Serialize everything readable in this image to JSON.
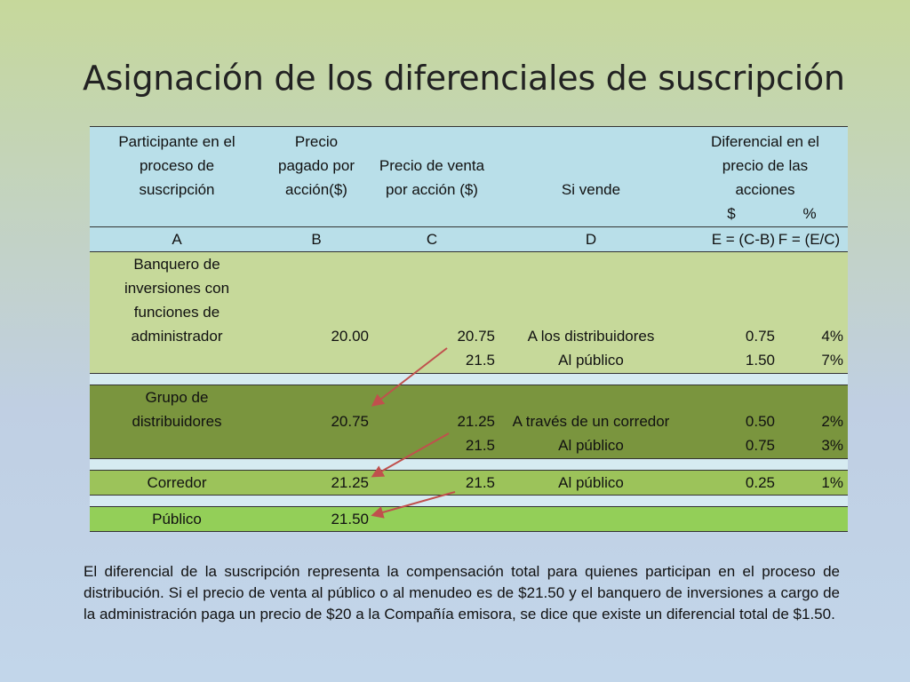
{
  "title": "Asignación de los diferenciales de suscripción",
  "table": {
    "header": {
      "participant": [
        "Participante en el",
        "proceso de",
        "suscripción"
      ],
      "price_paid": [
        "Precio",
        "pagado por",
        "acción($)"
      ],
      "sale_price": [
        "Precio de venta",
        "por acción ($)"
      ],
      "if_sells": "Si vende",
      "differential": [
        "Diferencial en el",
        "precio de las",
        "acciones"
      ],
      "dollar": "$",
      "percent": "%"
    },
    "letters": [
      "A",
      "B",
      "C",
      "D",
      "E = (C-B)",
      "F = (E/C)"
    ],
    "banker": {
      "name_lines": [
        "Banquero de",
        "inversiones con",
        "funciones de",
        "administrador"
      ],
      "price_paid": "20.00",
      "rows": [
        {
          "sale": "20.75",
          "to": "A los distribuidores",
          "diff": "0.75",
          "pct": "4%"
        },
        {
          "sale": "21.5",
          "to": "Al público",
          "diff": "1.50",
          "pct": "7%"
        }
      ]
    },
    "distributors": {
      "name_lines": [
        "Grupo de",
        "distribuidores"
      ],
      "price_paid": "20.75",
      "rows": [
        {
          "sale": "21.25",
          "to": "A través de un corredor",
          "diff": "0.50",
          "pct": "2%"
        },
        {
          "sale": "21.5",
          "to": "Al público",
          "diff": "0.75",
          "pct": "3%"
        }
      ]
    },
    "broker": {
      "name": "Corredor",
      "price_paid": "21.25",
      "sale": "21.5",
      "to": "Al público",
      "diff": "0.25",
      "pct": "1%"
    },
    "public": {
      "name": "Público",
      "price_paid": "21.50"
    }
  },
  "paragraph": "El diferencial de la suscripción representa la compensación total para quienes participan en el proceso de distribución. Si el precio de venta al público o al menudeo es de $21.50 y el banquero de inversiones a cargo de la administración paga un precio de $20 a la Compañía emisora, se dice que existe un diferencial total de $1.50.",
  "colors": {
    "arrow": "#c0504d",
    "header": "#b9dfe9",
    "banker_row": "#c6d99a",
    "distributor_row": "#7a953e",
    "broker_row": "#9cc35a",
    "public_row": "#93cf58"
  }
}
